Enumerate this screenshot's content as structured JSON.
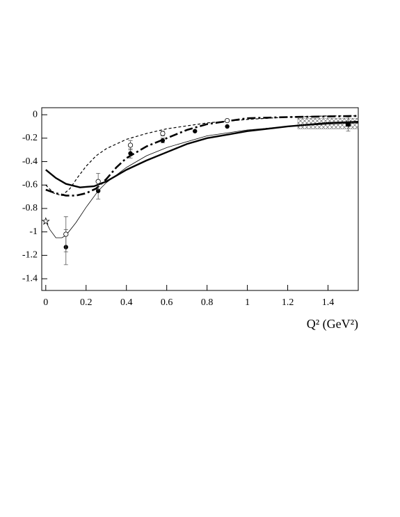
{
  "chart_data": {
    "type": "line",
    "x_label": "Q² (GeV²)",
    "xlim": [
      -0.02,
      1.55
    ],
    "ylim": [
      -1.5,
      0.06
    ],
    "xticks": [
      0,
      0.2,
      0.4,
      0.6,
      0.8,
      1,
      1.2,
      1.4
    ],
    "yticks": [
      0,
      -0.2,
      -0.4,
      -0.6,
      -0.8,
      -1,
      -1.2,
      -1.4
    ],
    "series": [
      {
        "style": "solid",
        "width": 2.4,
        "color": "#000000",
        "x": [
          0,
          0.05,
          0.1,
          0.17,
          0.24,
          0.3,
          0.4,
          0.5,
          0.6,
          0.7,
          0.8,
          0.9,
          1.0,
          1.2,
          1.4,
          1.55
        ],
        "values": [
          -0.47,
          -0.54,
          -0.59,
          -0.62,
          -0.61,
          -0.57,
          -0.47,
          -0.39,
          -0.32,
          -0.25,
          -0.2,
          -0.17,
          -0.14,
          -0.1,
          -0.07,
          -0.06
        ]
      },
      {
        "style": "dashed",
        "width": 1.2,
        "color": "#000000",
        "x": [
          0,
          0.04,
          0.08,
          0.12,
          0.16,
          0.2,
          0.25,
          0.3,
          0.4,
          0.5,
          0.6,
          0.8,
          1.0,
          1.2,
          1.4,
          1.55
        ],
        "values": [
          -0.6,
          -0.67,
          -0.69,
          -0.63,
          -0.53,
          -0.44,
          -0.35,
          -0.29,
          -0.21,
          -0.16,
          -0.12,
          -0.07,
          -0.04,
          -0.02,
          -0.01,
          -0.01
        ]
      },
      {
        "style": "dashdot",
        "width": 2.6,
        "color": "#000000",
        "x": [
          0,
          0.05,
          0.1,
          0.15,
          0.2,
          0.25,
          0.3,
          0.35,
          0.4,
          0.5,
          0.6,
          0.7,
          0.8,
          1.0,
          1.2,
          1.55
        ],
        "values": [
          -0.64,
          -0.67,
          -0.69,
          -0.69,
          -0.67,
          -0.63,
          -0.55,
          -0.45,
          -0.37,
          -0.27,
          -0.2,
          -0.13,
          -0.08,
          -0.03,
          -0.02,
          -0.01
        ]
      },
      {
        "style": "solid",
        "width": 0.8,
        "color": "#000000",
        "x": [
          0,
          0.02,
          0.05,
          0.08,
          0.1,
          0.15,
          0.2,
          0.26,
          0.3,
          0.4,
          0.5,
          0.6,
          0.8,
          1.0,
          1.2,
          1.4,
          1.55
        ],
        "values": [
          -0.91,
          -0.98,
          -1.05,
          -1.05,
          -1.03,
          -0.92,
          -0.79,
          -0.65,
          -0.58,
          -0.45,
          -0.35,
          -0.28,
          -0.18,
          -0.13,
          -0.1,
          -0.08,
          -0.07
        ]
      }
    ],
    "points": [
      {
        "marker": "filled-circle",
        "x": [
          0.1,
          0.26,
          0.42,
          0.58,
          0.74,
          0.9
        ],
        "values": [
          -1.13,
          -0.65,
          -0.33,
          -0.22,
          -0.14,
          -0.1
        ],
        "errors": [
          0.15,
          0.07,
          0.04,
          0.02,
          null,
          null
        ]
      },
      {
        "marker": "open-circle",
        "x": [
          0.1,
          0.26,
          0.42,
          0.58,
          0.9
        ],
        "values": [
          -1.02,
          -0.57,
          -0.26,
          -0.16,
          -0.05
        ],
        "errors": [
          0.15,
          0.07,
          0.04,
          0.02,
          null
        ]
      },
      {
        "marker": "filled-square",
        "x": [
          1.5
        ],
        "values": [
          -0.08
        ],
        "errors": [
          0.06
        ]
      },
      {
        "marker": "open-star",
        "x": [
          0
        ],
        "values": [
          -0.91
        ],
        "errors": [
          null
        ]
      }
    ],
    "band": {
      "x": [
        1.25,
        1.55
      ],
      "y": [
        -0.12,
        -0.03
      ]
    }
  }
}
